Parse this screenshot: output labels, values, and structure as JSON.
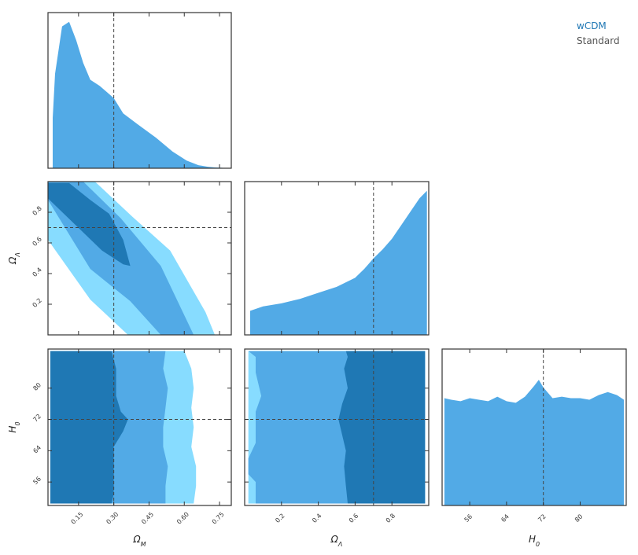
{
  "chart_data": {
    "type": "corner",
    "params": [
      "Ω_M",
      "Ω_Λ",
      "H_0"
    ],
    "legend": [
      {
        "label": "wCDM",
        "color": "#1f77b4"
      },
      {
        "label": "Standard",
        "color": "#555555"
      }
    ],
    "colors": {
      "level1": "#1f78b4",
      "level2": "#52aae6",
      "level3": "#87dcff",
      "marginal": "#52aae6",
      "truth": "#444444",
      "frame": "#333333"
    },
    "truth": {
      "omega_m": 0.3,
      "omega_l": 0.7,
      "h0": 72
    },
    "axes": {
      "omega_m": {
        "label": "Ω_M",
        "lim": [
          0.02,
          0.8
        ],
        "ticks": [
          "0.15",
          "0.30",
          "0.45",
          "0.60",
          "0.75"
        ]
      },
      "omega_l": {
        "label": "Ω_Λ",
        "lim": [
          0.0,
          1.0
        ],
        "ticks": [
          "0.2",
          "0.4",
          "0.6",
          "0.8"
        ]
      },
      "h0": {
        "label": "H_0",
        "lim": [
          50,
          90
        ],
        "ticks": [
          "56",
          "64",
          "72",
          "80"
        ]
      }
    },
    "marginals": {
      "omega_m": {
        "x": [
          0.04,
          0.05,
          0.08,
          0.11,
          0.14,
          0.17,
          0.2,
          0.24,
          0.27,
          0.3,
          0.34,
          0.4,
          0.48,
          0.55,
          0.61,
          0.66,
          0.7,
          0.73,
          0.76,
          0.78
        ],
        "y": [
          0.33,
          0.62,
          0.93,
          0.96,
          0.84,
          0.69,
          0.58,
          0.54,
          0.5,
          0.46,
          0.36,
          0.29,
          0.2,
          0.11,
          0.05,
          0.02,
          0.01,
          0.005,
          0.003,
          0.0
        ]
      },
      "omega_l": {
        "x": [
          0.03,
          0.1,
          0.2,
          0.3,
          0.4,
          0.5,
          0.55,
          0.6,
          0.65,
          0.7,
          0.75,
          0.8,
          0.85,
          0.9,
          0.95,
          0.99
        ],
        "y": [
          0.16,
          0.19,
          0.21,
          0.24,
          0.28,
          0.32,
          0.35,
          0.38,
          0.44,
          0.51,
          0.57,
          0.64,
          0.73,
          0.82,
          0.91,
          0.96
        ]
      },
      "h0": {
        "x": [
          50.5,
          52,
          54,
          56,
          58,
          60,
          62,
          64,
          66,
          68,
          70,
          71,
          72,
          74,
          76,
          78,
          80,
          82,
          84,
          86,
          88,
          89.5
        ],
        "y": [
          0.7,
          0.69,
          0.68,
          0.7,
          0.69,
          0.68,
          0.71,
          0.68,
          0.67,
          0.71,
          0.78,
          0.82,
          0.77,
          0.7,
          0.71,
          0.7,
          0.7,
          0.69,
          0.72,
          0.74,
          0.72,
          0.69
        ]
      }
    },
    "contours_2d": [
      {
        "x_param": "omega_m",
        "y_param": "omega_l",
        "levels": [
          {
            "level": 3,
            "points": [
              [
                0.02,
                1.0
              ],
              [
                0.22,
                1.0
              ],
              [
                0.38,
                0.77
              ],
              [
                0.54,
                0.55
              ],
              [
                0.69,
                0.15
              ],
              [
                0.73,
                0.0
              ],
              [
                0.36,
                0.0
              ],
              [
                0.2,
                0.23
              ],
              [
                0.02,
                0.62
              ]
            ]
          },
          {
            "level": 2,
            "points": [
              [
                0.02,
                1.0
              ],
              [
                0.17,
                1.0
              ],
              [
                0.33,
                0.76
              ],
              [
                0.5,
                0.45
              ],
              [
                0.64,
                0.0
              ],
              [
                0.5,
                0.0
              ],
              [
                0.37,
                0.22
              ],
              [
                0.2,
                0.43
              ],
              [
                0.02,
                0.88
              ]
            ]
          },
          {
            "level": 1,
            "points": [
              [
                0.02,
                0.99
              ],
              [
                0.11,
                0.99
              ],
              [
                0.2,
                0.88
              ],
              [
                0.28,
                0.79
              ],
              [
                0.34,
                0.62
              ],
              [
                0.37,
                0.45
              ],
              [
                0.34,
                0.46
              ],
              [
                0.25,
                0.55
              ],
              [
                0.02,
                0.89
              ]
            ]
          }
        ]
      },
      {
        "x_param": "omega_m",
        "y_param": "h0",
        "levels": [
          {
            "level": 3,
            "points": [
              [
                0.03,
                89.5
              ],
              [
                0.6,
                89.5
              ],
              [
                0.63,
                85
              ],
              [
                0.64,
                80
              ],
              [
                0.63,
                75
              ],
              [
                0.64,
                70
              ],
              [
                0.63,
                65
              ],
              [
                0.65,
                60
              ],
              [
                0.65,
                55
              ],
              [
                0.64,
                50.5
              ],
              [
                0.03,
                50.5
              ]
            ]
          },
          {
            "level": 2,
            "points": [
              [
                0.03,
                89.5
              ],
              [
                0.52,
                89.5
              ],
              [
                0.51,
                85
              ],
              [
                0.53,
                80
              ],
              [
                0.52,
                75
              ],
              [
                0.51,
                70
              ],
              [
                0.51,
                65
              ],
              [
                0.53,
                60
              ],
              [
                0.52,
                55
              ],
              [
                0.52,
                50.5
              ],
              [
                0.03,
                50.5
              ]
            ]
          },
          {
            "level": 1,
            "points": [
              [
                0.03,
                89.5
              ],
              [
                0.29,
                89.5
              ],
              [
                0.31,
                85
              ],
              [
                0.31,
                78
              ],
              [
                0.33,
                74
              ],
              [
                0.36,
                72
              ],
              [
                0.34,
                69
              ],
              [
                0.3,
                65
              ],
              [
                0.3,
                58
              ],
              [
                0.3,
                53
              ],
              [
                0.29,
                50.5
              ],
              [
                0.03,
                50.5
              ]
            ]
          }
        ]
      },
      {
        "x_param": "omega_l",
        "y_param": "h0",
        "levels": [
          {
            "level": 3,
            "points": [
              [
                0.02,
                89.5
              ],
              [
                0.98,
                89.5
              ],
              [
                0.98,
                50.5
              ],
              [
                0.02,
                50.5
              ]
            ]
          },
          {
            "level": 2,
            "points": [
              [
                0.02,
                89.5
              ],
              [
                0.98,
                89.5
              ],
              [
                0.98,
                50.5
              ],
              [
                0.06,
                50.5
              ],
              [
                0.06,
                56
              ],
              [
                0.02,
                58
              ],
              [
                0.02,
                62
              ],
              [
                0.06,
                66
              ],
              [
                0.06,
                74
              ],
              [
                0.09,
                78
              ],
              [
                0.06,
                84
              ],
              [
                0.06,
                88
              ]
            ]
          },
          {
            "level": 1,
            "points": [
              [
                0.55,
                89.5
              ],
              [
                0.98,
                89.5
              ],
              [
                0.98,
                50.5
              ],
              [
                0.56,
                50.5
              ],
              [
                0.55,
                55
              ],
              [
                0.54,
                60
              ],
              [
                0.55,
                64
              ],
              [
                0.53,
                68
              ],
              [
                0.51,
                72
              ],
              [
                0.53,
                76
              ],
              [
                0.56,
                80
              ],
              [
                0.54,
                85
              ],
              [
                0.56,
                88
              ]
            ]
          }
        ]
      }
    ]
  }
}
